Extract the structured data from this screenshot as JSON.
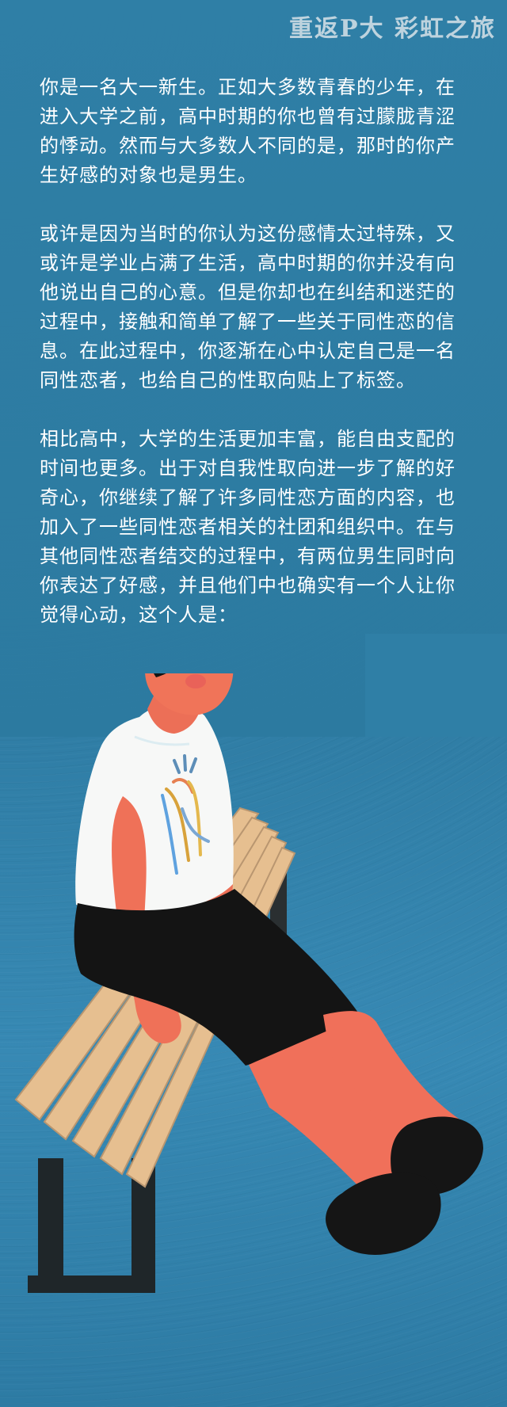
{
  "header": {
    "title": "重返P大 彩虹之旅"
  },
  "story": {
    "paragraphs": [
      "你是一名大一新生。正如大多数青春的少年，在进入大学之前，高中时期的你也曾有过朦胧青涩的悸动。然而与大多数人不同的是，那时的你产生好感的对象也是男生。",
      "或许是因为当时的你认为这份感情太过特殊，又或许是学业占满了生活，高中时期的你并没有向他说出自己的心意。但是你却也在纠结和迷茫的过程中，接触和简单了解了一些关于同性恋的信息。在此过程中，你逐渐在心中认定自己是一名同性恋者，也给自己的性取向贴上了标签。",
      "相比高中，大学的生活更加丰富，能自由支配的时间也更多。出于对自我性取向进一步了解的好奇心，你继续了解了许多同性恋方面的内容，也加入了一些同性恋者相关的社团和组织中。在与其他同性恋者结交的过程中，有两位男生同时向你表达了好感，并且他们中也确实有一个人让你觉得心动，这个人是："
    ]
  },
  "colors": {
    "background": "#2f7fa6",
    "text": "#ffffff",
    "skin": "#f06e55",
    "shirt": "#ffffff",
    "shorts": "#111111",
    "bench": "#e6bf90"
  }
}
